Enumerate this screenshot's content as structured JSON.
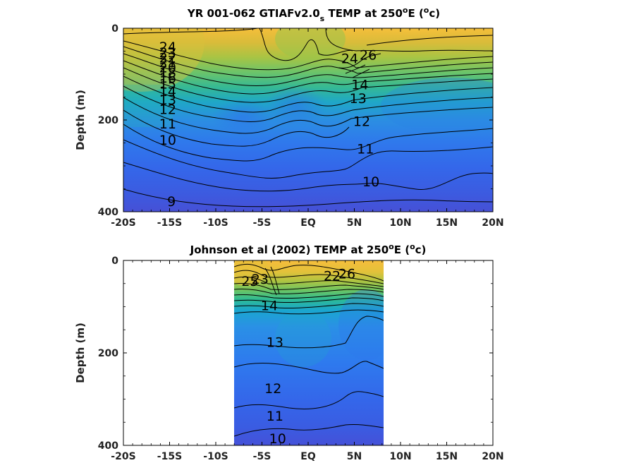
{
  "chart_data": [
    {
      "type": "heatmap",
      "subtype": "filled-contour",
      "title": {
        "main": "YR 001-062 GTIAFv2.0",
        "sub": "s",
        "rest": " TEMP at 250",
        "deg": "o",
        "unit_open": "E (",
        "unit_deg": "o",
        "unit": "c)"
      },
      "ylabel": "Depth (m)",
      "x_ticks": [
        "-20S",
        "-15S",
        "-10S",
        "-5S",
        "EQ",
        "5N",
        "10N",
        "15N",
        "20N"
      ],
      "y_ticks": [
        "0",
        "200",
        "400"
      ],
      "xlim": [
        -20,
        20
      ],
      "ylim": [
        400,
        0
      ],
      "data_extent_lat": [
        -20,
        20
      ],
      "contour_levels": [
        9,
        10,
        11,
        12,
        13,
        14,
        15,
        16,
        17,
        18,
        19,
        20,
        21,
        22,
        23,
        24,
        25,
        26
      ],
      "contour_labels": [
        {
          "text": "24",
          "lat": -15.2,
          "depth": 40
        },
        {
          "text": "23",
          "lat": -15.2,
          "depth": 52
        },
        {
          "text": "22",
          "lat": -15.2,
          "depth": 64
        },
        {
          "text": "21",
          "lat": -15.2,
          "depth": 74
        },
        {
          "text": "20",
          "lat": -15.2,
          "depth": 85
        },
        {
          "text": "18",
          "lat": -15.2,
          "depth": 96
        },
        {
          "text": "16",
          "lat": -15.2,
          "depth": 108
        },
        {
          "text": "15",
          "lat": -15.2,
          "depth": 121
        },
        {
          "text": "14",
          "lat": -15.2,
          "depth": 137
        },
        {
          "text": "13",
          "lat": -15.2,
          "depth": 155
        },
        {
          "text": "12",
          "lat": -15.2,
          "depth": 176
        },
        {
          "text": "11",
          "lat": -15.2,
          "depth": 208
        },
        {
          "text": "10",
          "lat": -15.2,
          "depth": 243
        },
        {
          "text": "9",
          "lat": -14.8,
          "depth": 377
        },
        {
          "text": "24",
          "lat": 4.5,
          "depth": 65
        },
        {
          "text": "26",
          "lat": 6.5,
          "depth": 58
        },
        {
          "text": "14",
          "lat": 5.6,
          "depth": 122
        },
        {
          "text": "13",
          "lat": 5.4,
          "depth": 152
        },
        {
          "text": "12",
          "lat": 5.8,
          "depth": 202
        },
        {
          "text": "11",
          "lat": 6.2,
          "depth": 262
        },
        {
          "text": "10",
          "lat": 6.8,
          "depth": 334
        }
      ]
    },
    {
      "type": "heatmap",
      "subtype": "filled-contour",
      "title": {
        "main": "Johnson et al (2002) TEMP at 250",
        "deg": "o",
        "unit_open": "E (",
        "unit_deg": "o",
        "unit": "c)"
      },
      "ylabel": "Depth (m)",
      "x_ticks": [
        "-20S",
        "-15S",
        "-10S",
        "-5S",
        "EQ",
        "5N",
        "10N",
        "15N",
        "20N"
      ],
      "y_ticks": [
        "0",
        "200",
        "400"
      ],
      "xlim": [
        -20,
        20
      ],
      "ylim": [
        400,
        0
      ],
      "data_extent_lat": [
        -8,
        8.2
      ],
      "contour_levels": [
        10,
        11,
        12,
        13,
        14,
        15,
        16,
        17,
        18,
        19,
        20,
        21,
        22,
        23,
        24,
        25,
        26
      ],
      "contour_labels": [
        {
          "text": "25",
          "lat": -6.3,
          "depth": 44
        },
        {
          "text": "23",
          "lat": -5.2,
          "depth": 40
        },
        {
          "text": "14",
          "lat": -4.2,
          "depth": 97
        },
        {
          "text": "22",
          "lat": 2.6,
          "depth": 33
        },
        {
          "text": "26",
          "lat": 4.2,
          "depth": 28
        },
        {
          "text": "13",
          "lat": -3.6,
          "depth": 176
        },
        {
          "text": "12",
          "lat": -3.8,
          "depth": 276
        },
        {
          "text": "11",
          "lat": -3.6,
          "depth": 336
        },
        {
          "text": "10",
          "lat": -3.3,
          "depth": 385
        }
      ]
    }
  ],
  "colors": {
    "warm": "#f7cd3b",
    "cool": "#3a60e0",
    "axes": "#000000"
  }
}
